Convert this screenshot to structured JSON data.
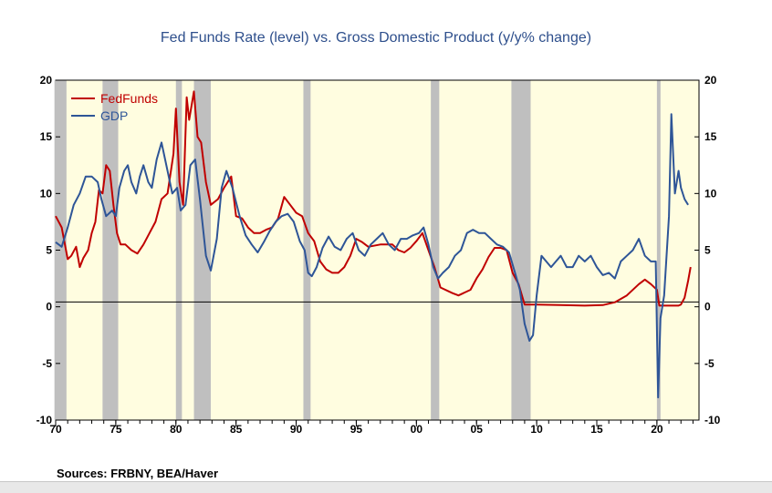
{
  "chart_data": {
    "type": "line",
    "title": "Fed Funds Rate (level)  vs. Gross Domestic Product (y/y% change)",
    "xlabel": "",
    "ylabel": "",
    "xlim": [
      1970,
      2023.5
    ],
    "ylim": [
      -10,
      20
    ],
    "x_ticks": [
      1970,
      1975,
      1980,
      1985,
      1990,
      1995,
      2000,
      2005,
      2010,
      2015,
      2020
    ],
    "x_tick_labels": [
      "70",
      "75",
      "80",
      "85",
      "90",
      "95",
      "00",
      "05",
      "10",
      "15",
      "20"
    ],
    "y_ticks": [
      -10,
      -5,
      0,
      5,
      10,
      15,
      20
    ],
    "y_tick_labels": [
      "-10",
      "-5",
      "0",
      "5",
      "10",
      "15",
      "20"
    ],
    "right_axis_labels": [
      "-10",
      "-5",
      "0",
      "5",
      "10",
      "15",
      "20"
    ],
    "legend_position": "top-left",
    "recessions": [
      [
        1969.9,
        1970.9
      ],
      [
        1973.9,
        1975.2
      ],
      [
        1980.0,
        1980.5
      ],
      [
        1981.5,
        1982.9
      ],
      [
        1990.6,
        1991.2
      ],
      [
        2001.2,
        2001.9
      ],
      [
        2007.9,
        2009.5
      ],
      [
        2020.0,
        2020.3
      ]
    ],
    "series": [
      {
        "name": "FedFunds",
        "color": "#c00000",
        "x": [
          1970.0,
          1970.5,
          1971.0,
          1971.3,
          1971.7,
          1972.0,
          1972.3,
          1972.7,
          1973.0,
          1973.3,
          1973.6,
          1973.9,
          1974.2,
          1974.5,
          1974.8,
          1975.1,
          1975.4,
          1975.8,
          1976.3,
          1976.8,
          1977.3,
          1977.8,
          1978.3,
          1978.8,
          1979.3,
          1979.8,
          1980.0,
          1980.3,
          1980.6,
          1980.9,
          1981.1,
          1981.5,
          1981.8,
          1982.1,
          1982.5,
          1982.9,
          1983.5,
          1984.0,
          1984.6,
          1985.0,
          1985.5,
          1986.0,
          1986.5,
          1987.0,
          1987.5,
          1988.0,
          1988.5,
          1989.0,
          1989.5,
          1990.0,
          1990.5,
          1991.0,
          1991.5,
          1992.0,
          1992.5,
          1993.0,
          1993.5,
          1994.0,
          1994.5,
          1995.0,
          1995.5,
          1996.0,
          1997.0,
          1998.0,
          1998.5,
          1999.0,
          1999.5,
          2000.0,
          2000.5,
          2001.0,
          2001.5,
          2002.0,
          2003.0,
          2003.5,
          2004.5,
          2005.0,
          2005.5,
          2006.0,
          2006.5,
          2007.0,
          2007.5,
          2008.0,
          2008.5,
          2009.0,
          2010.0,
          2012.0,
          2014.0,
          2015.5,
          2016.5,
          2017.5,
          2018.5,
          2019.0,
          2019.5,
          2020.0,
          2020.2,
          2021.0,
          2021.8,
          2022.0,
          2022.3,
          2022.6,
          2022.8
        ],
        "values": [
          8.0,
          7.0,
          4.2,
          4.5,
          5.3,
          3.5,
          4.3,
          5.0,
          6.5,
          7.5,
          10.3,
          10.0,
          12.5,
          12.0,
          9.0,
          6.5,
          5.5,
          5.5,
          5.0,
          4.7,
          5.5,
          6.5,
          7.5,
          9.5,
          10.0,
          13.5,
          17.5,
          11.0,
          9.0,
          18.5,
          16.5,
          19.0,
          15.0,
          14.5,
          11.0,
          9.0,
          9.5,
          10.5,
          11.5,
          8.0,
          7.8,
          7.0,
          6.5,
          6.5,
          6.8,
          7.0,
          7.8,
          9.7,
          9.0,
          8.3,
          8.0,
          6.5,
          5.8,
          4.0,
          3.3,
          3.0,
          3.0,
          3.5,
          4.5,
          6.0,
          5.7,
          5.3,
          5.5,
          5.5,
          5.0,
          4.8,
          5.2,
          5.8,
          6.5,
          5.0,
          3.5,
          1.7,
          1.2,
          1.0,
          1.5,
          2.5,
          3.3,
          4.4,
          5.2,
          5.2,
          5.0,
          3.0,
          2.0,
          0.2,
          0.2,
          0.15,
          0.1,
          0.15,
          0.4,
          1.0,
          2.0,
          2.4,
          2.0,
          1.5,
          0.1,
          0.1,
          0.1,
          0.2,
          0.8,
          2.3,
          3.5
        ]
      },
      {
        "name": "GDP",
        "color": "#2e5597",
        "x": [
          1970.0,
          1970.5,
          1971.0,
          1971.5,
          1972.0,
          1972.5,
          1973.0,
          1973.5,
          1973.8,
          1974.2,
          1974.7,
          1975.0,
          1975.3,
          1975.7,
          1976.0,
          1976.3,
          1976.7,
          1977.0,
          1977.3,
          1977.7,
          1978.0,
          1978.4,
          1978.8,
          1979.3,
          1979.7,
          1980.1,
          1980.4,
          1980.8,
          1981.2,
          1981.6,
          1982.0,
          1982.5,
          1982.9,
          1983.4,
          1983.8,
          1984.2,
          1984.7,
          1985.3,
          1985.8,
          1986.3,
          1986.8,
          1987.3,
          1987.8,
          1988.3,
          1988.8,
          1989.3,
          1989.8,
          1990.3,
          1990.7,
          1991.0,
          1991.3,
          1991.7,
          1992.2,
          1992.7,
          1993.2,
          1993.7,
          1994.2,
          1994.7,
          1995.2,
          1995.7,
          1996.2,
          1996.7,
          1997.2,
          1997.7,
          1998.2,
          1998.7,
          1999.2,
          1999.7,
          2000.2,
          2000.6,
          2001.0,
          2001.4,
          2001.8,
          2002.2,
          2002.7,
          2003.2,
          2003.7,
          2004.2,
          2004.7,
          2005.2,
          2005.7,
          2006.2,
          2006.7,
          2007.2,
          2007.7,
          2008.2,
          2008.6,
          2009.0,
          2009.4,
          2009.7,
          2010.0,
          2010.4,
          2010.8,
          2011.2,
          2011.6,
          2012.0,
          2012.5,
          2013.0,
          2013.5,
          2014.0,
          2014.5,
          2015.0,
          2015.5,
          2016.0,
          2016.5,
          2017.0,
          2017.5,
          2018.0,
          2018.5,
          2019.0,
          2019.5,
          2019.9,
          2020.1,
          2020.3,
          2020.6,
          2021.0,
          2021.2,
          2021.5,
          2021.8,
          2022.0,
          2022.3,
          2022.6
        ],
        "values": [
          5.7,
          5.3,
          7.0,
          9.0,
          10.0,
          11.5,
          11.5,
          11.0,
          9.5,
          8.0,
          8.5,
          8.0,
          10.5,
          12.0,
          12.5,
          11.0,
          10.0,
          11.5,
          12.5,
          11.0,
          10.5,
          13.0,
          14.5,
          12.0,
          10.0,
          10.5,
          8.5,
          9.0,
          12.5,
          13.0,
          9.5,
          4.5,
          3.2,
          6.0,
          10.5,
          12.0,
          10.5,
          8.0,
          6.3,
          5.5,
          4.8,
          5.7,
          6.7,
          7.5,
          8.0,
          8.2,
          7.5,
          5.8,
          5.0,
          3.0,
          2.7,
          3.5,
          5.2,
          6.2,
          5.3,
          5.0,
          6.0,
          6.5,
          5.0,
          4.5,
          5.5,
          6.0,
          6.5,
          5.5,
          5.0,
          6.0,
          6.0,
          6.3,
          6.5,
          7.0,
          5.5,
          3.5,
          2.5,
          3.0,
          3.5,
          4.5,
          5.0,
          6.5,
          6.8,
          6.5,
          6.5,
          6.0,
          5.5,
          5.3,
          4.8,
          3.0,
          1.5,
          -1.5,
          -3.0,
          -2.5,
          1.0,
          4.5,
          4.0,
          3.5,
          4.0,
          4.5,
          3.5,
          3.5,
          4.5,
          4.0,
          4.5,
          3.5,
          2.8,
          3.0,
          2.5,
          4.0,
          4.5,
          5.0,
          6.0,
          4.5,
          4.0,
          4.0,
          -8.0,
          -1.0,
          1.0,
          8.0,
          17.0,
          10.0,
          12.0,
          10.5,
          9.5,
          9.0
        ]
      }
    ]
  },
  "source": "Sources:  FRBNY, BEA/Haver"
}
